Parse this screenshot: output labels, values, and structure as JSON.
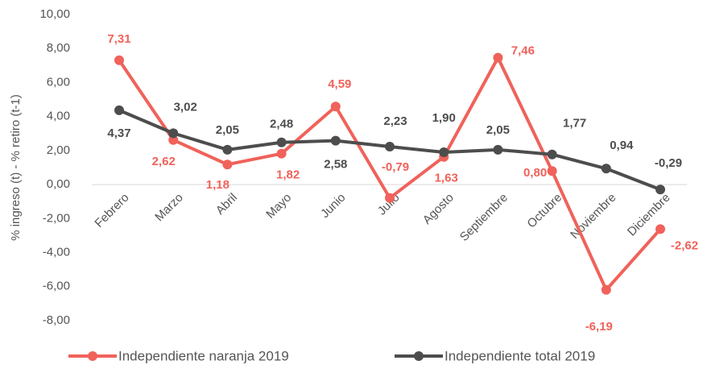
{
  "chart_data": {
    "type": "line",
    "y_label": "% ingreso (t) - % retiro (t-1)",
    "categories": [
      "Febrero",
      "Marzo",
      "Abril",
      "Mayo",
      "Junio",
      "Julio",
      "Agosto",
      "Septiembre",
      "Octubre",
      "Noviembre",
      "Diciembre"
    ],
    "series": [
      {
        "name": "Independiente naranja 2019",
        "color": "#f0625a",
        "values": [
          7.31,
          2.62,
          1.18,
          1.82,
          4.59,
          -0.79,
          1.63,
          7.46,
          0.8,
          -6.19,
          -2.62
        ],
        "value_labels": [
          "7,31",
          "2,62",
          "1,18",
          "1,82",
          "4,59",
          "-0,79",
          "1,63",
          "7,46",
          "0,80",
          "-6,19",
          "-2,62"
        ]
      },
      {
        "name": "Independiente total 2019",
        "color": "#4d4d4d",
        "values": [
          4.37,
          3.02,
          2.05,
          2.48,
          2.58,
          2.23,
          1.9,
          2.05,
          1.77,
          0.94,
          -0.29
        ],
        "value_labels": [
          "4,37",
          "3,02",
          "2,05",
          "2,48",
          "2,58",
          "2,23",
          "1,90",
          "2,05",
          "1,77",
          "0,94",
          "-0,29"
        ]
      }
    ],
    "ylim": [
      -8,
      10
    ],
    "yticks": [
      {
        "value": 10,
        "label": "10,00"
      },
      {
        "value": 8,
        "label": "8,00"
      },
      {
        "value": 6,
        "label": "6,00"
      },
      {
        "value": 4,
        "label": "4,00"
      },
      {
        "value": 2,
        "label": "2,00"
      },
      {
        "value": 0,
        "label": "0,00"
      },
      {
        "value": -2,
        "label": "-2,00"
      },
      {
        "value": -4,
        "label": "-4,00"
      },
      {
        "value": -6,
        "label": "-6,00"
      },
      {
        "value": -8,
        "label": "-8,00"
      }
    ],
    "grid": false,
    "legend": "bottom"
  }
}
